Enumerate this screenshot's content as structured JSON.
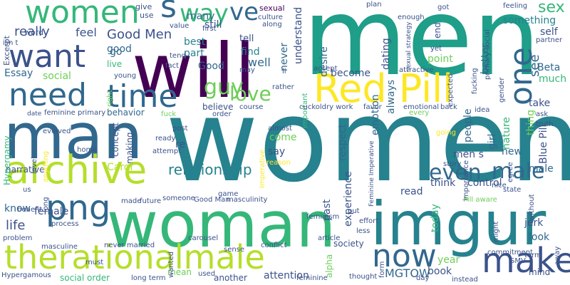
{
  "palette": {
    "dark_purple": "#440154",
    "indigo": "#3b528b",
    "blue": "#31688e",
    "teal": "#26828e",
    "green_teal": "#1f9e89",
    "green": "#35b779",
    "light_green": "#6ece58",
    "yellow_green": "#b5de2b",
    "yellow": "#fde725"
  },
  "words": [
    {
      "text": "women"
    },
    {
      "text": "men"
    },
    {
      "text": "will"
    },
    {
      "text": "man"
    },
    {
      "text": "woman"
    },
    {
      "text": "imgur"
    },
    {
      "text": "therationalmale"
    },
    {
      "text": "Red Pill"
    },
    {
      "text": "archive"
    },
    {
      "text": "need"
    },
    {
      "text": "time"
    },
    {
      "text": "want"
    },
    {
      "text": "women"
    },
    {
      "text": "png"
    },
    {
      "text": "make"
    },
    {
      "text": "one"
    },
    {
      "text": "now"
    },
    {
      "text": "s"
    },
    {
      "text": "way"
    },
    {
      "text": "guy"
    },
    {
      "text": "love"
    },
    {
      "text": "ve"
    },
    {
      "text": "sex"
    },
    {
      "text": "even"
    },
    {
      "text": "male"
    },
    {
      "text": "relationship"
    },
    {
      "text": "really"
    },
    {
      "text": "Good Men"
    },
    {
      "text": "feel"
    },
    {
      "text": "good"
    },
    {
      "text": "best"
    },
    {
      "text": "part"
    },
    {
      "text": "Good"
    },
    {
      "text": "well"
    },
    {
      "text": "find"
    },
    {
      "text": "tell"
    },
    {
      "text": "still"
    },
    {
      "text": "sexual"
    },
    {
      "text": "never"
    },
    {
      "text": "understand"
    },
    {
      "text": "desire"
    },
    {
      "text": "dating"
    },
    {
      "text": "point"
    },
    {
      "text": "better"
    },
    {
      "text": "see"
    },
    {
      "text": "something"
    },
    {
      "text": "self"
    },
    {
      "text": "Beta"
    },
    {
      "text": "much"
    },
    {
      "text": "take"
    },
    {
      "text": "thing"
    },
    {
      "text": "nature"
    },
    {
      "text": "Blue Pill"
    },
    {
      "text": "people"
    },
    {
      "text": "girl"
    },
    {
      "text": "today"
    },
    {
      "text": "emotion"
    },
    {
      "text": "always"
    },
    {
      "text": "become"
    },
    {
      "text": "respect"
    },
    {
      "text": "experience"
    },
    {
      "text": "think"
    },
    {
      "text": "control"
    },
    {
      "text": "read"
    },
    {
      "text": "past"
    },
    {
      "text": "men s"
    },
    {
      "text": "new"
    },
    {
      "text": "male"
    },
    {
      "text": "jerk"
    },
    {
      "text": "look"
    },
    {
      "text": "life"
    },
    {
      "text": "know"
    },
    {
      "text": "female"
    },
    {
      "text": "social"
    },
    {
      "text": "Essay"
    },
    {
      "text": "behavior"
    },
    {
      "text": "concept"
    },
    {
      "text": "making"
    },
    {
      "text": "come"
    },
    {
      "text": "say"
    },
    {
      "text": "re"
    },
    {
      "text": "narrative"
    },
    {
      "text": "Carol"
    },
    {
      "text": "Hypergamy"
    },
    {
      "text": "go"
    },
    {
      "text": "live"
    },
    {
      "text": "social order"
    },
    {
      "text": "MGTOW"
    },
    {
      "text": "book"
    },
    {
      "text": "year"
    },
    {
      "text": "attention"
    },
    {
      "text": "another"
    },
    {
      "text": "mean"
    },
    {
      "text": "alpha"
    },
    {
      "text": "society"
    },
    {
      "text": "many"
    },
    {
      "text": "Excerpt"
    },
    {
      "text": "word"
    },
    {
      "text": "give"
    },
    {
      "text": "use"
    },
    {
      "text": "value"
    },
    {
      "text": "first"
    },
    {
      "text": "culture"
    },
    {
      "text": "along"
    },
    {
      "text": "plan"
    },
    {
      "text": "got"
    },
    {
      "text": "enough"
    },
    {
      "text": "end"
    },
    {
      "text": "feeling"
    },
    {
      "text": "partner"
    },
    {
      "text": "sexual strategy"
    },
    {
      "text": "primary social"
    },
    {
      "text": "yet"
    },
    {
      "text": "fact"
    },
    {
      "text": "tend"
    },
    {
      "text": "may"
    },
    {
      "text": "ll"
    },
    {
      "text": "accept"
    },
    {
      "text": "attractive"
    },
    {
      "text": "rather"
    },
    {
      "text": "important"
    },
    {
      "text": "expected"
    },
    {
      "text": "fucking"
    },
    {
      "text": "gender"
    },
    {
      "text": "young"
    },
    {
      "text": "right"
    },
    {
      "text": "feminine primary"
    },
    {
      "text": "date"
    },
    {
      "text": "believe"
    },
    {
      "text": "order"
    },
    {
      "text": "course"
    },
    {
      "text": "cuckoldry work"
    },
    {
      "text": "emotional"
    },
    {
      "text": "favor"
    },
    {
      "text": "back"
    },
    {
      "text": "idea"
    },
    {
      "text": "ask"
    },
    {
      "text": "truth"
    },
    {
      "text": "post"
    },
    {
      "text": "almost"
    },
    {
      "text": "every"
    },
    {
      "text": "fuck"
    },
    {
      "text": "evolved"
    },
    {
      "text": "home"
    },
    {
      "text": "ready"
    },
    {
      "text": "attempt"
    },
    {
      "text": "level"
    },
    {
      "text": "anything"
    },
    {
      "text": "Imperative"
    },
    {
      "text": "reason"
    },
    {
      "text": "story"
    },
    {
      "text": "going"
    },
    {
      "text": "egree"
    },
    {
      "text": "Feminine Imperative"
    },
    {
      "text": "importance"
    },
    {
      "text": "nice"
    },
    {
      "text": "state"
    },
    {
      "text": "without"
    },
    {
      "text": "game"
    },
    {
      "text": "long"
    },
    {
      "text": "benefit"
    },
    {
      "text": "made"
    },
    {
      "text": "future"
    },
    {
      "text": "someone"
    },
    {
      "text": "Good Man"
    },
    {
      "text": "masculinity"
    },
    {
      "text": "article"
    },
    {
      "text": "effort"
    },
    {
      "text": "less"
    },
    {
      "text": "Pill aware"
    },
    {
      "text": "might"
    },
    {
      "text": "process"
    },
    {
      "text": "feminism"
    },
    {
      "text": "put"
    },
    {
      "text": "problem"
    },
    {
      "text": "masculine"
    },
    {
      "text": "never married"
    },
    {
      "text": "carousel"
    },
    {
      "text": "sense"
    },
    {
      "text": "conflict"
    },
    {
      "text": "commitment"
    },
    {
      "text": "SMV"
    },
    {
      "text": "mind"
    },
    {
      "text": "term"
    },
    {
      "text": "away"
    },
    {
      "text": "Hypergamous"
    },
    {
      "text": "must"
    },
    {
      "text": "wanted"
    },
    {
      "text": "long term"
    },
    {
      "text": "used"
    },
    {
      "text": "feminine"
    },
    {
      "text": "thought"
    },
    {
      "text": "form"
    },
    {
      "text": "day"
    },
    {
      "text": "instead"
    },
    {
      "text": "isn t"
    },
    {
      "text": "us"
    }
  ]
}
